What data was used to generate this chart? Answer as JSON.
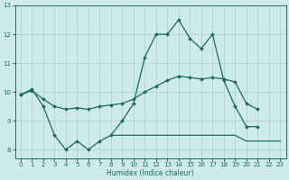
{
  "xlabel": "Humidex (Indice chaleur)",
  "x": [
    0,
    1,
    2,
    3,
    4,
    5,
    6,
    7,
    8,
    9,
    10,
    11,
    12,
    13,
    14,
    15,
    16,
    17,
    18,
    19,
    20,
    21,
    22,
    23
  ],
  "top_y": [
    9.9,
    10.1,
    9.5,
    8.5,
    8.0,
    8.3,
    8.0,
    8.3,
    8.5,
    9.0,
    9.6,
    11.2,
    12.0,
    12.0,
    12.5,
    11.85,
    11.5,
    12.0,
    10.4,
    9.5,
    8.8,
    8.8,
    null,
    null
  ],
  "mid_y": [
    9.9,
    10.05,
    9.75,
    9.5,
    9.4,
    9.45,
    9.4,
    9.5,
    9.55,
    9.6,
    9.75,
    10.0,
    10.2,
    10.4,
    10.55,
    10.5,
    10.45,
    10.5,
    10.45,
    10.35,
    9.6,
    9.4,
    null,
    null
  ],
  "bot_y": [
    null,
    null,
    null,
    null,
    null,
    null,
    null,
    null,
    8.5,
    8.5,
    8.5,
    8.5,
    8.5,
    8.5,
    8.5,
    8.5,
    8.5,
    8.5,
    8.5,
    8.5,
    8.3,
    8.3,
    8.3,
    8.3
  ],
  "color": "#1a6b5a",
  "bg_color": "#ceeaea",
  "grid_color": "#aed4d4",
  "ylim": [
    7.7,
    13.0
  ],
  "xlim": [
    -0.5,
    23.5
  ],
  "yticks": [
    8,
    9,
    10,
    11,
    12,
    13
  ]
}
